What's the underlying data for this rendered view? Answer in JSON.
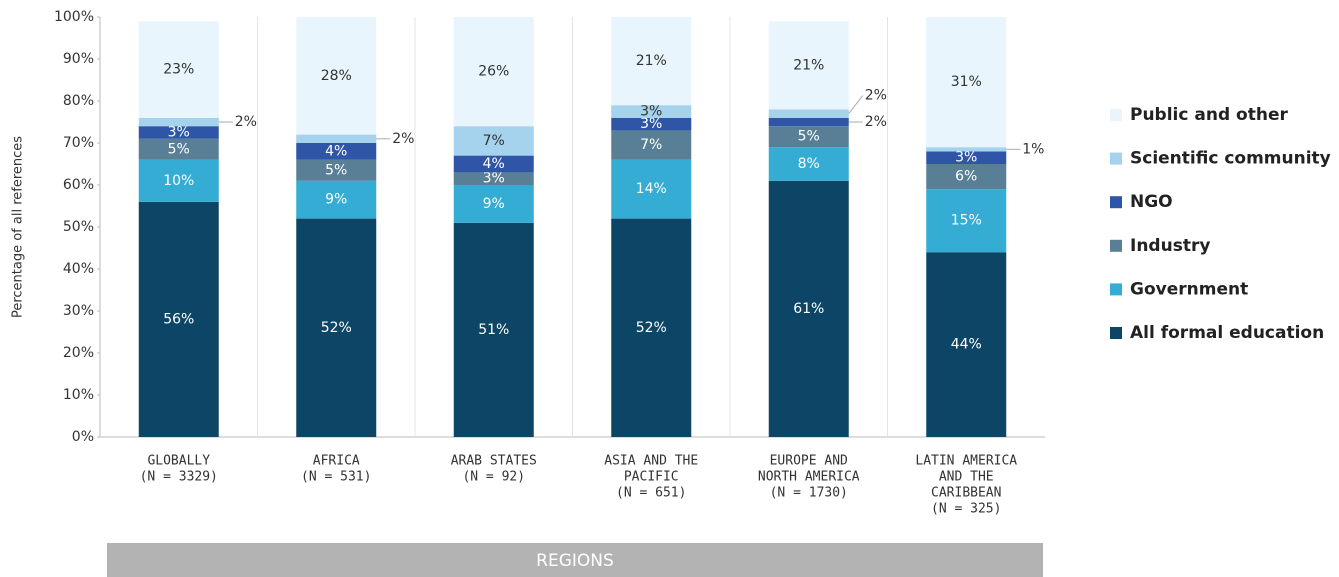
{
  "chart_data": {
    "type": "stacked_bar",
    "ylabel": "Percentage of all references",
    "xlabel": "REGIONS",
    "categories": [
      [
        "GLOBALLY",
        "(N = 3329)"
      ],
      [
        "AFRICA",
        "(N = 531)"
      ],
      [
        "ARAB STATES",
        "(N = 92)"
      ],
      [
        "ASIA AND THE",
        "PACIFIC",
        "(N = 651)"
      ],
      [
        "EUROPE AND",
        "NORTH AMERICA",
        "(N = 1730)"
      ],
      [
        "LATIN AMERICA",
        "AND THE",
        "CARIBBEAN",
        "(N = 325)"
      ]
    ],
    "series": [
      {
        "name": "All formal education",
        "color": "#0d4566",
        "label_color": "#ffffff",
        "values": [
          56,
          52,
          51,
          52,
          61,
          44
        ],
        "value_labels": [
          "56%",
          "52%",
          "51%",
          "52%",
          "61%",
          "44%"
        ]
      },
      {
        "name": "Government",
        "color": "#35acd3",
        "label_color": "#ffffff",
        "values": [
          10,
          9,
          9,
          14,
          8,
          15
        ],
        "value_labels": [
          "10%",
          "9%",
          "9%",
          "14%",
          "8%",
          "15%"
        ]
      },
      {
        "name": "Industry",
        "color": "#587f95",
        "label_color": "#ffffff",
        "values": [
          5,
          5,
          3,
          7,
          5,
          6
        ],
        "value_labels": [
          "5%",
          "5%",
          "3%",
          "7%",
          "5%",
          "6%"
        ]
      },
      {
        "name": "NGO",
        "color": "#2f56a6",
        "label_color": "#ffffff",
        "values": [
          3,
          4,
          4,
          3,
          2,
          3
        ],
        "value_labels": [
          "3%",
          "4%",
          "4%",
          "3%",
          "2%",
          "3%"
        ]
      },
      {
        "name": "Scientific community",
        "color": "#a5d2ec",
        "label_color": "#333333",
        "values": [
          2,
          2,
          7,
          3,
          2,
          1
        ],
        "value_labels": [
          "2%",
          "2%",
          "7%",
          "3%",
          "2%",
          "1%"
        ]
      },
      {
        "name": "Public and other",
        "color": "#e9f5fc",
        "label_color": "#333333",
        "values": [
          23,
          28,
          26,
          21,
          21,
          31
        ],
        "value_labels": [
          "23%",
          "28%",
          "26%",
          "21%",
          "21%",
          "31%"
        ]
      }
    ],
    "ylim": [
      0,
      100
    ],
    "yticks": [
      {
        "value": 0,
        "label": "0%"
      },
      {
        "value": 10,
        "label": "10%"
      },
      {
        "value": 20,
        "label": "20%"
      },
      {
        "value": 30,
        "label": "30%"
      },
      {
        "value": 40,
        "label": "40%"
      },
      {
        "value": 50,
        "label": "50%"
      },
      {
        "value": 60,
        "label": "60%"
      },
      {
        "value": 70,
        "label": "70%"
      },
      {
        "value": 80,
        "label": "80%"
      },
      {
        "value": 90,
        "label": "90%"
      },
      {
        "value": 100,
        "label": "100%"
      }
    ]
  }
}
